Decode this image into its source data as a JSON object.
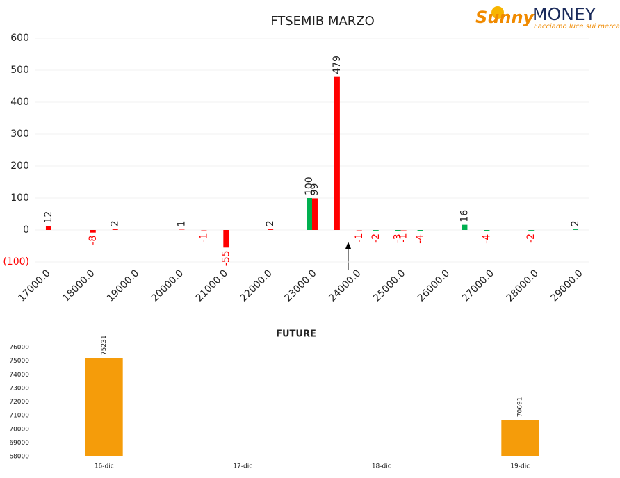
{
  "logo": {
    "brand": "Sunny",
    "name": "MONEY",
    "tagline": "Facciamo luce sui mercati"
  },
  "chart_data": [
    {
      "type": "bar",
      "title": "FTSEMIB MARZO",
      "categories": [
        "17000.0",
        null,
        "18000.0",
        null,
        "19000.0",
        null,
        "20000.0",
        null,
        "21000.0",
        null,
        "22000.0",
        null,
        "23000.0",
        null,
        "24000.0",
        null,
        "25000.0",
        null,
        "26000.0",
        null,
        "27000.0",
        null,
        "28000.0",
        null,
        "29000.0"
      ],
      "series": [
        {
          "color": "#00b050",
          "values": [
            null,
            null,
            null,
            null,
            null,
            null,
            null,
            null,
            null,
            null,
            null,
            null,
            100,
            null,
            null,
            -2,
            -3,
            -4,
            null,
            16,
            -4,
            null,
            -2,
            null,
            2
          ]
        },
        {
          "color": "#ff0000",
          "values": [
            12,
            null,
            -8,
            2,
            null,
            null,
            1,
            -1,
            -55,
            null,
            2,
            null,
            99,
            479,
            -1,
            null,
            -1,
            null,
            null,
            null,
            null,
            null,
            null,
            null,
            null
          ]
        }
      ],
      "negative_label_color": "#ff0000",
      "ylim": [
        -100,
        600
      ],
      "yticks": [
        {
          "value": -100,
          "label": "(100)"
        },
        0,
        100,
        200,
        300,
        400,
        500,
        600
      ],
      "grid": true
    },
    {
      "type": "bar",
      "title": "FUTURE",
      "categories": [
        "16-dic",
        "17-dic",
        "18-dic",
        "19-dic"
      ],
      "values": [
        75231,
        null,
        null,
        70691
      ],
      "color": "#f59c0a",
      "ylim": [
        68000,
        76000
      ],
      "yticks": [
        68000,
        69000,
        70000,
        71000,
        72000,
        73000,
        74000,
        75000,
        76000
      ],
      "grid": false
    }
  ]
}
